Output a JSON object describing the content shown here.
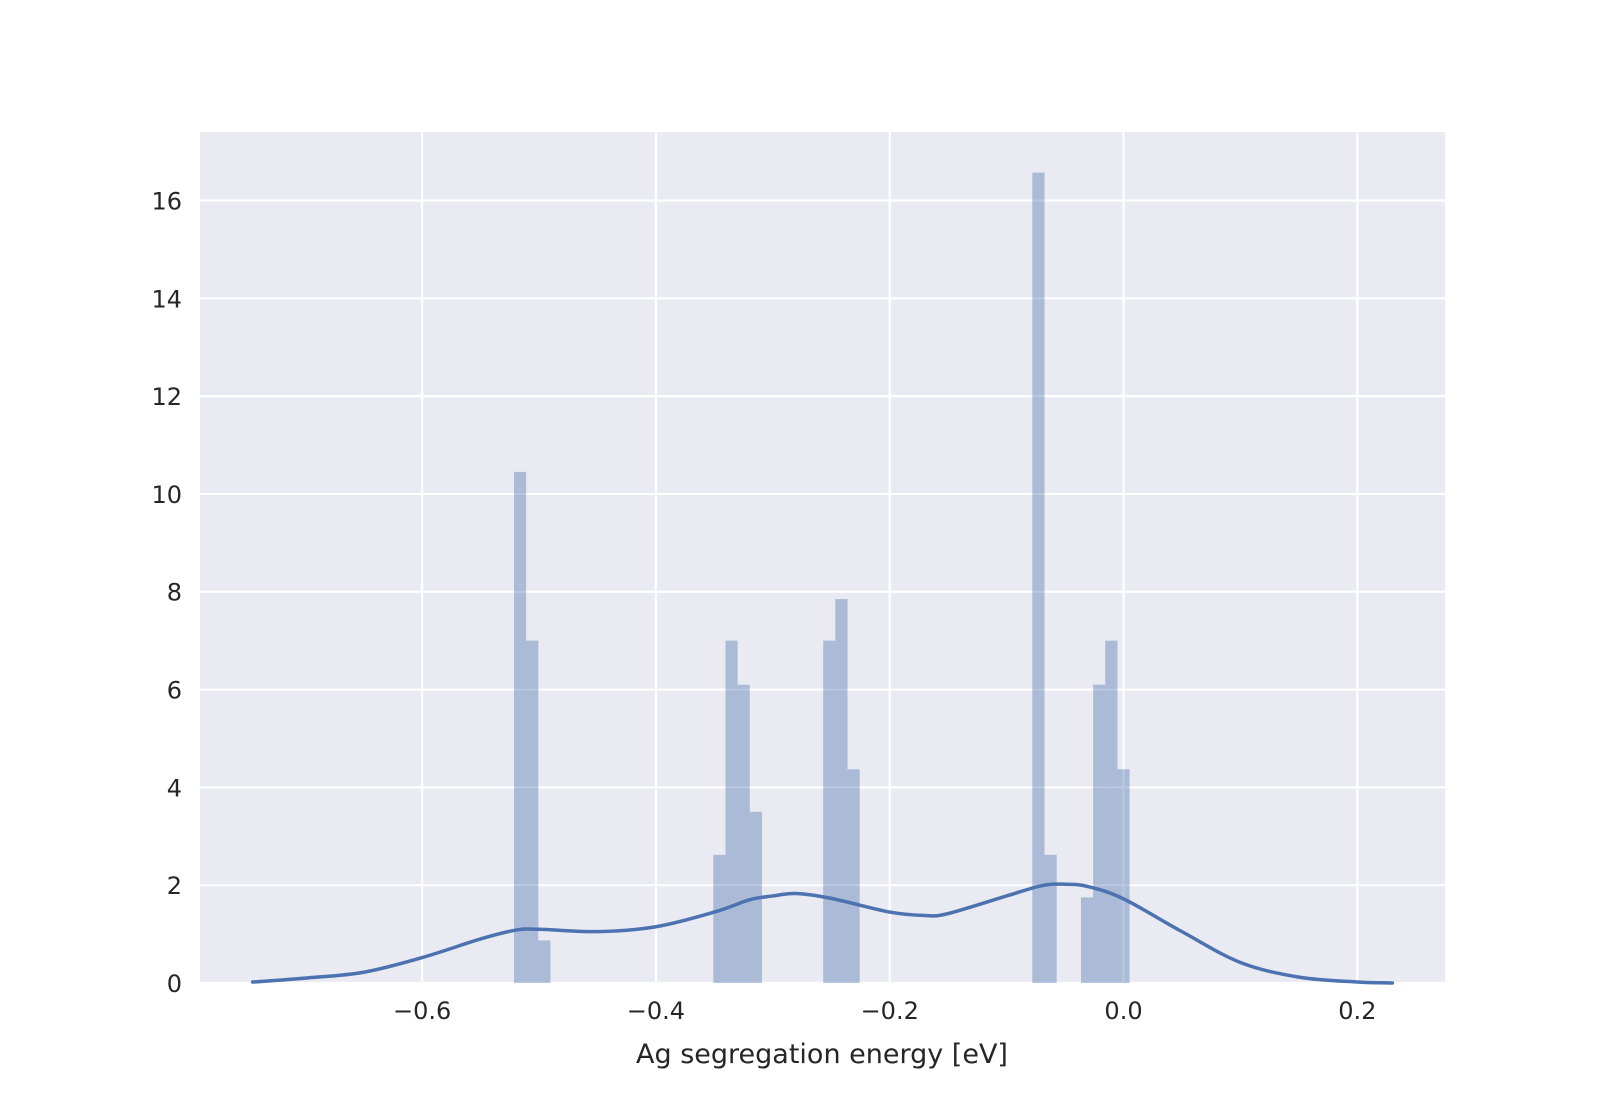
{
  "chart_data": {
    "type": "histogram+kde",
    "title": "",
    "xlabel": "Ag segregation energy [eV]",
    "ylabel": "",
    "xlim": [
      -0.79,
      0.275
    ],
    "ylim": [
      0,
      17.4
    ],
    "xticks": [
      -0.6,
      -0.4,
      -0.2,
      0.0,
      0.2
    ],
    "xtick_labels": [
      "−0.6",
      "−0.4",
      "−0.2",
      "0.0",
      "0.2"
    ],
    "yticks": [
      0,
      2,
      4,
      6,
      8,
      10,
      12,
      14,
      16
    ],
    "ytick_labels": [
      "0",
      "2",
      "4",
      "6",
      "8",
      "10",
      "12",
      "14",
      "16"
    ],
    "grid": true,
    "background_color": "#eaeaf2",
    "bar_color": "#4c72b0",
    "bar_opacity": 0.4,
    "line_color": "#4c72b0",
    "bin_width": 0.0104,
    "bins": [
      {
        "x0": -0.5214,
        "height": 10.45
      },
      {
        "x0": -0.511,
        "height": 7.0
      },
      {
        "x0": -0.5006,
        "height": 0.87
      },
      {
        "x0": -0.3509,
        "height": 2.62
      },
      {
        "x0": -0.3405,
        "height": 7.0
      },
      {
        "x0": -0.3301,
        "height": 6.1
      },
      {
        "x0": -0.3197,
        "height": 3.5
      },
      {
        "x0": -0.2569,
        "height": 7.0
      },
      {
        "x0": -0.2465,
        "height": 7.85
      },
      {
        "x0": -0.2361,
        "height": 4.37
      },
      {
        "x0": -0.078,
        "height": 16.57
      },
      {
        "x0": -0.0676,
        "height": 2.62
      },
      {
        "x0": -0.0364,
        "height": 1.75
      },
      {
        "x0": -0.026,
        "height": 6.1
      },
      {
        "x0": -0.0156,
        "height": 7.0
      },
      {
        "x0": -0.0052,
        "height": 4.37
      }
    ],
    "kde": {
      "x": [
        -0.745,
        -0.7,
        -0.65,
        -0.6,
        -0.55,
        -0.52,
        -0.5,
        -0.45,
        -0.4,
        -0.35,
        -0.32,
        -0.3,
        -0.28,
        -0.25,
        -0.2,
        -0.17,
        -0.15,
        -0.1,
        -0.07,
        -0.05,
        -0.03,
        0.0,
        0.05,
        0.1,
        0.15,
        0.2,
        0.23
      ],
      "y": [
        0.02,
        0.1,
        0.22,
        0.52,
        0.9,
        1.08,
        1.1,
        1.05,
        1.15,
        1.45,
        1.7,
        1.78,
        1.83,
        1.73,
        1.45,
        1.38,
        1.42,
        1.78,
        1.99,
        2.02,
        1.97,
        1.72,
        1.05,
        0.42,
        0.12,
        0.02,
        0.0
      ]
    }
  }
}
